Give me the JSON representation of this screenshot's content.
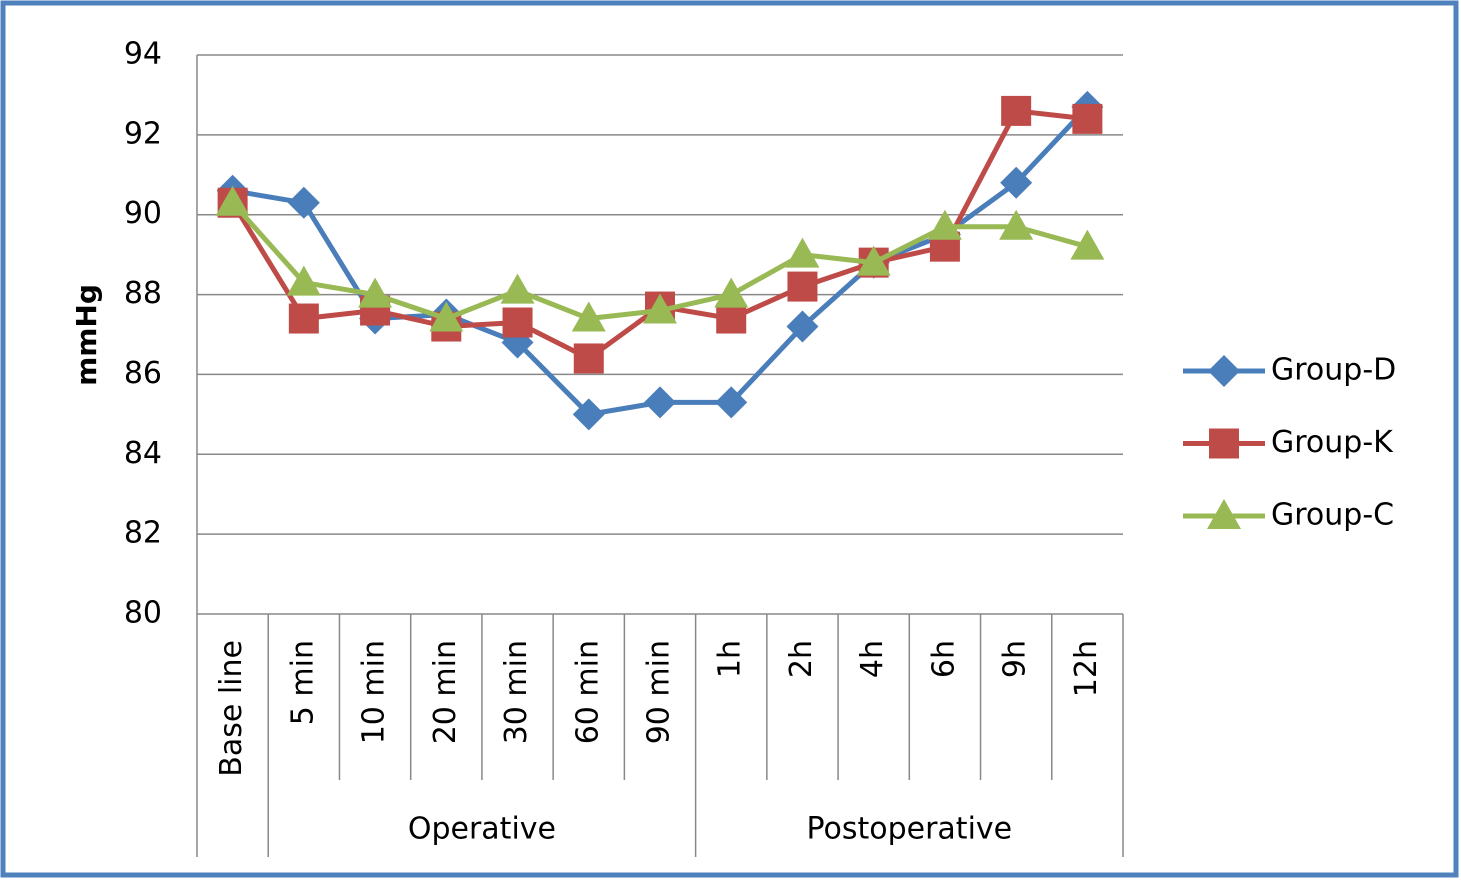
{
  "chart_data": {
    "type": "line",
    "y_label": "mmHg",
    "categories": [
      "Base line",
      "5 min",
      "10 min",
      "20 min",
      "30 min",
      "60 min",
      "90 min",
      "1h",
      "2h",
      "4h",
      "6h",
      "9h",
      "12h"
    ],
    "category_groups": [
      null,
      "Operative",
      "Operative",
      "Operative",
      "Operative",
      "Operative",
      "Operative",
      "Postoperative",
      "Postoperative",
      "Postoperative",
      "Postoperative",
      "Postoperative",
      "Postoperative"
    ],
    "series": [
      {
        "name": "Group-D",
        "color": "#4a7ebb",
        "marker": "diamond",
        "values": [
          90.6,
          90.3,
          87.4,
          87.5,
          86.8,
          85.0,
          85.3,
          85.3,
          87.2,
          88.8,
          89.5,
          90.8,
          92.7
        ]
      },
      {
        "name": "Group-K",
        "color": "#be4b48",
        "marker": "square",
        "values": [
          90.3,
          87.4,
          87.6,
          87.2,
          87.3,
          86.4,
          87.7,
          87.4,
          88.2,
          88.8,
          89.2,
          92.6,
          92.4
        ]
      },
      {
        "name": "Group-C",
        "color": "#98b954",
        "marker": "triangle",
        "values": [
          90.3,
          88.3,
          88.0,
          87.4,
          88.1,
          87.4,
          87.6,
          88.0,
          89.0,
          88.8,
          89.7,
          89.7,
          89.2
        ]
      }
    ],
    "ylim": [
      80,
      94
    ],
    "yticks": [
      80,
      82,
      84,
      86,
      88,
      90,
      92,
      94
    ],
    "grid": true,
    "legend": "right"
  }
}
